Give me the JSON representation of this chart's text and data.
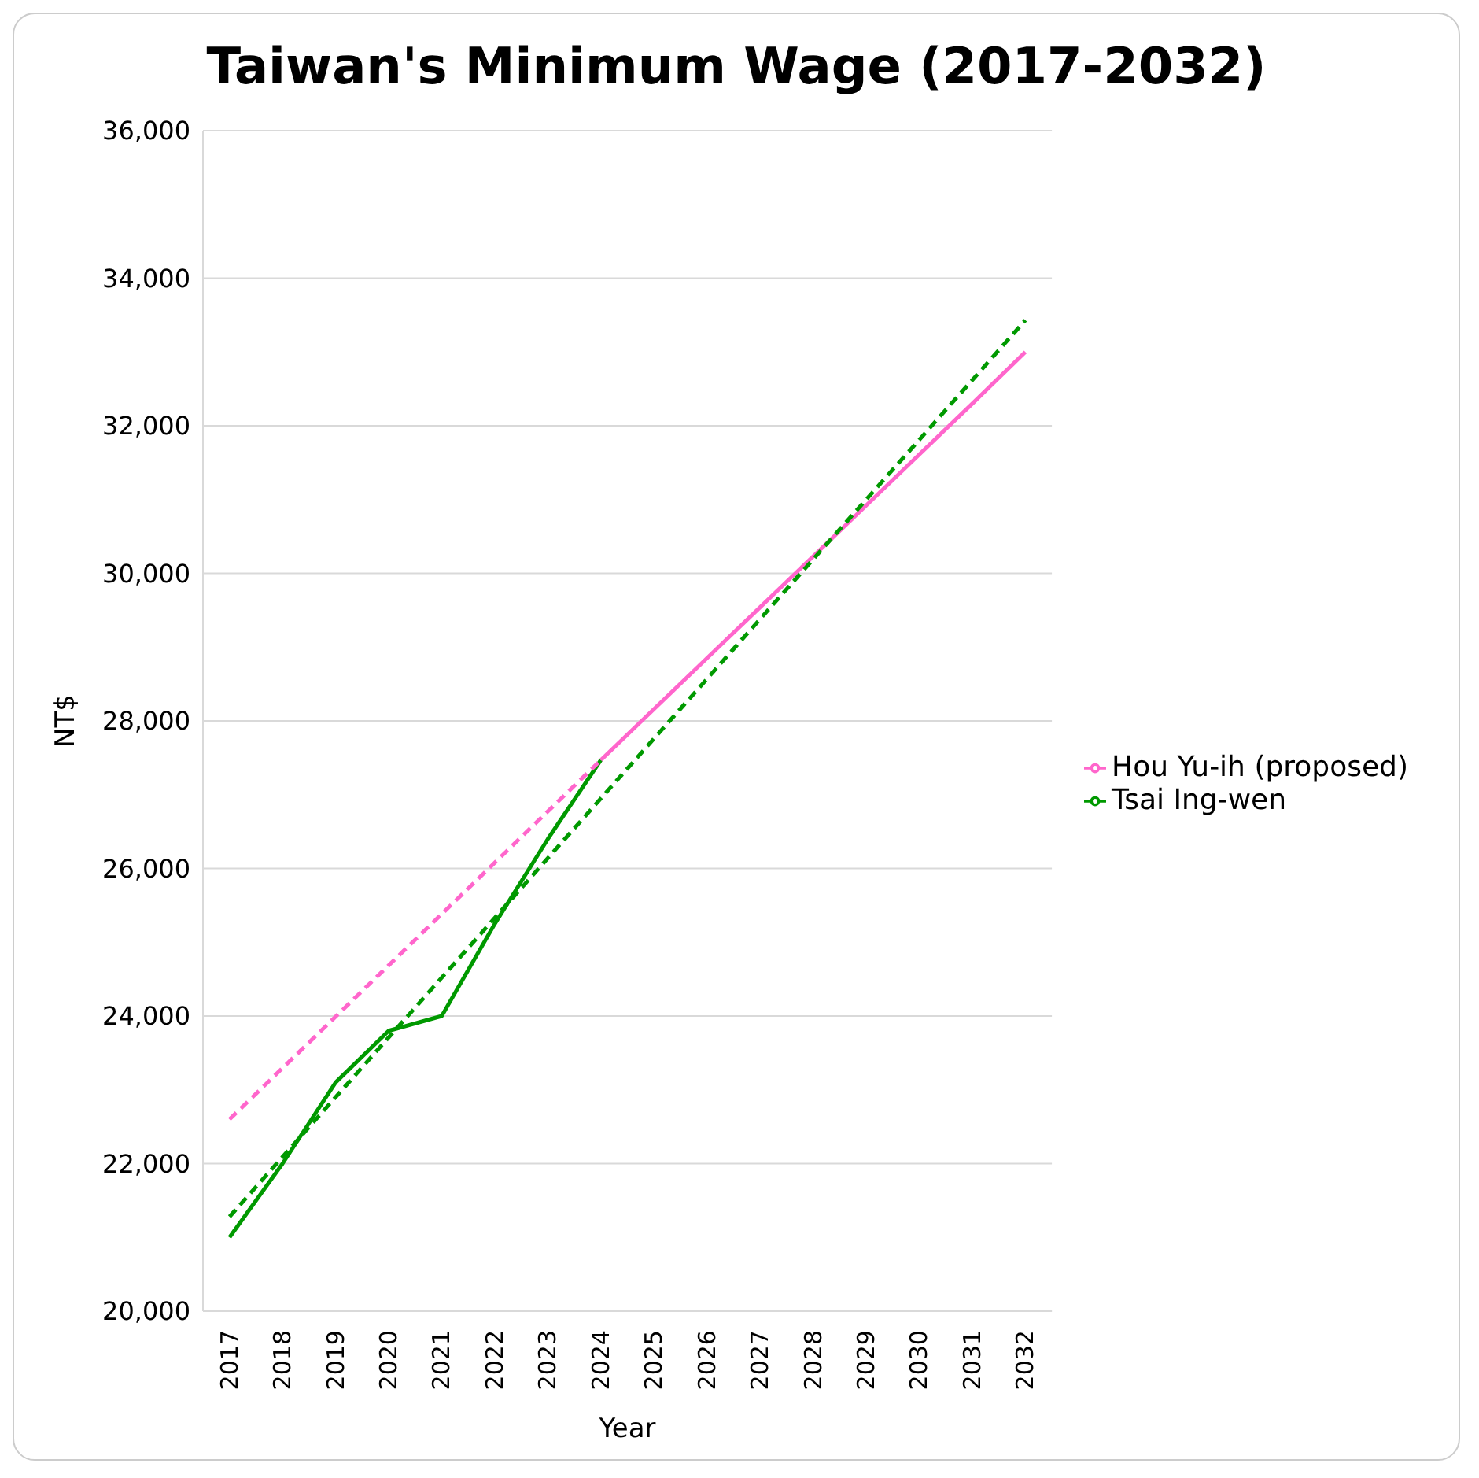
{
  "chart_data": {
    "type": "line",
    "title": "Taiwan's Minimum Wage (2017-2032)",
    "xlabel": "Year",
    "ylabel": "NT$",
    "xlim": [
      2016.5,
      2032.5
    ],
    "xticks": [
      2017,
      2018,
      2019,
      2020,
      2021,
      2022,
      2023,
      2024,
      2025,
      2026,
      2027,
      2028,
      2029,
      2030,
      2031,
      2032
    ],
    "ylim": [
      20000,
      36000
    ],
    "yticks": [
      {
        "value": 20000,
        "label": "20,000"
      },
      {
        "value": 22000,
        "label": "22,000"
      },
      {
        "value": 24000,
        "label": "24,000"
      },
      {
        "value": 26000,
        "label": "26,000"
      },
      {
        "value": 28000,
        "label": "28,000"
      },
      {
        "value": 30000,
        "label": "30,000"
      },
      {
        "value": 32000,
        "label": "32,000"
      },
      {
        "value": 34000,
        "label": "34,000"
      },
      {
        "value": 36000,
        "label": "36,000"
      }
    ],
    "grid": "y",
    "legend": "right",
    "marker": "none",
    "series": [
      {
        "name": "Tsai Ing-wen",
        "color": "#009900",
        "line_style": "solid",
        "x": [
          2017,
          2018,
          2019,
          2020,
          2021,
          2022,
          2023,
          2024
        ],
        "values": [
          21000,
          22000,
          23100,
          23800,
          24000,
          25250,
          26400,
          27470
        ]
      },
      {
        "name": "Hou Yu-ih (proposed)",
        "color": "#ff66cc",
        "line_style": "solid",
        "x": [
          2024,
          2025,
          2026,
          2027,
          2028,
          2029,
          2030,
          2031,
          2032
        ],
        "values": [
          27470,
          28160,
          28850,
          29540,
          30230,
          30920,
          31610,
          32300,
          33000
        ]
      },
      {
        "color": "#ff66cc",
        "line_style": "dashed",
        "x": [
          2017,
          2024
        ],
        "values": [
          22600,
          27470
        ]
      },
      {
        "color": "#009900",
        "line_style": "dashed",
        "x": [
          2017,
          2032
        ],
        "values": [
          21280,
          33430
        ]
      }
    ]
  }
}
